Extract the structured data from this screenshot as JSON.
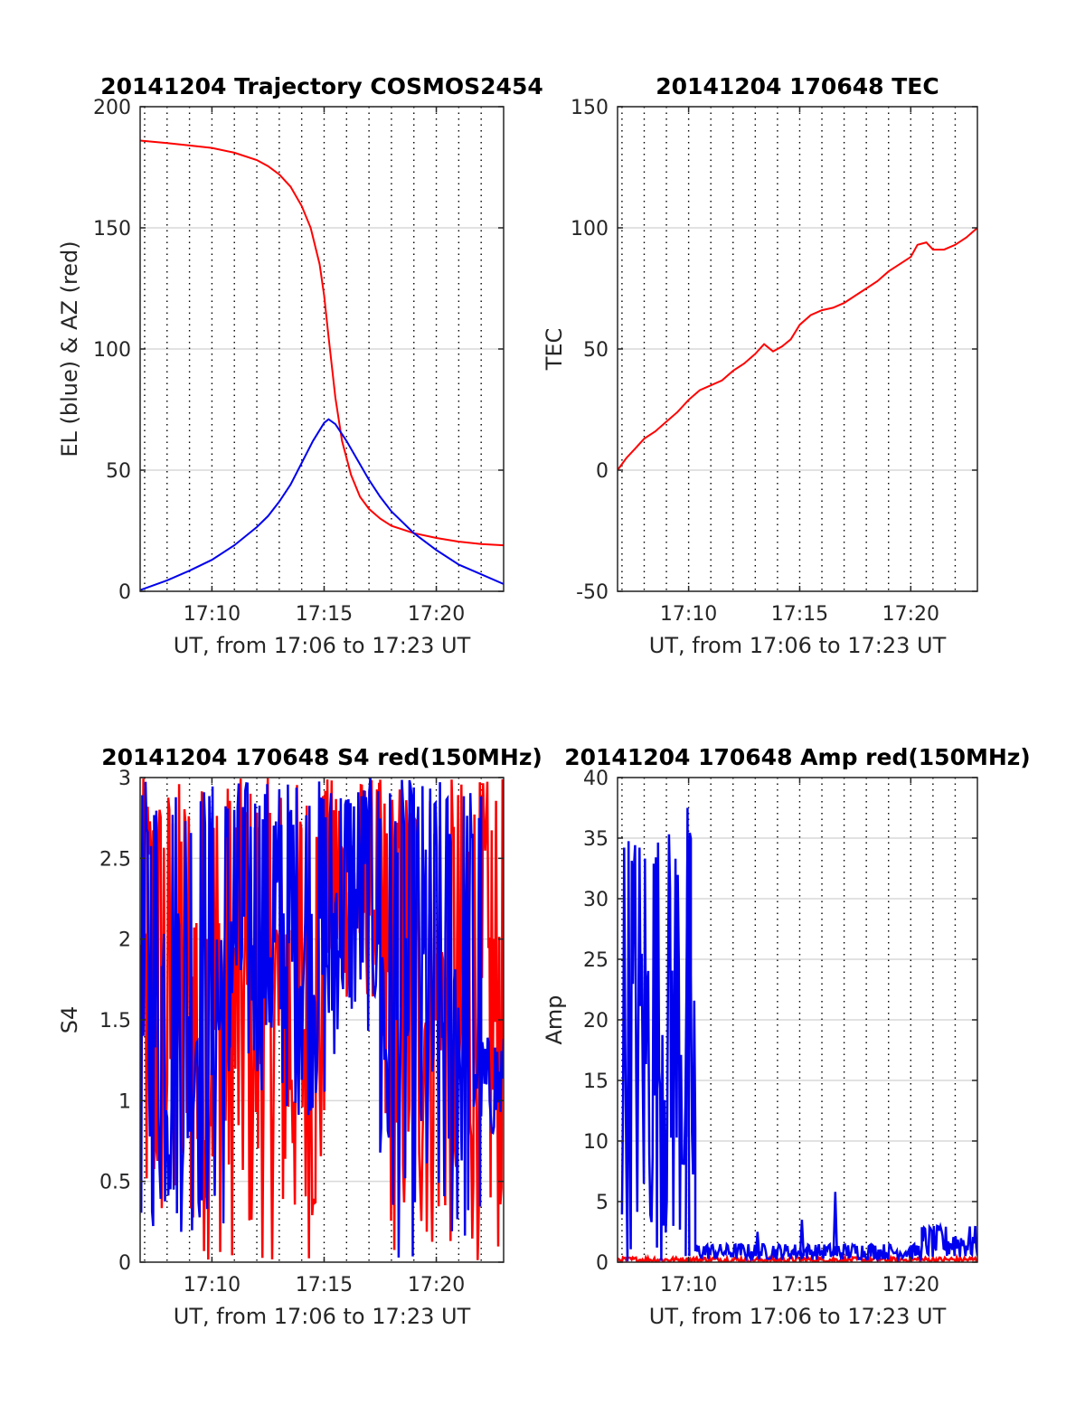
{
  "figure": {
    "x_ticks": [
      "17:10",
      "17:15",
      "17:20"
    ],
    "x_tick_values": [
      10,
      15,
      20
    ],
    "x_range": [
      6.8,
      23.0
    ],
    "minor_grid_minutes": [
      7,
      8,
      9,
      10,
      11,
      12,
      13,
      14,
      15,
      16,
      17,
      18,
      19,
      20,
      21,
      22
    ],
    "colors": {
      "red": "#ff0000",
      "blue": "#0000ee",
      "axis": "#262626",
      "grid": "#d9d9d9"
    }
  },
  "chart_data": [
    {
      "id": "trajectory",
      "type": "line",
      "title": "20141204 Trajectory COSMOS2454",
      "xlabel": "UT, from 17:06 to 17:23 UT",
      "ylabel": "EL (blue) & AZ (red)",
      "ylim": [
        0,
        200
      ],
      "yticks": [
        "0",
        "50",
        "100",
        "150",
        "200"
      ],
      "ytick_values": [
        0,
        50,
        100,
        150,
        200
      ],
      "series": [
        {
          "color": "#ff0000",
          "x": [
            6.8,
            8,
            9,
            10,
            11,
            12,
            12.5,
            13,
            13.5,
            14,
            14.4,
            14.8,
            15.0,
            15.2,
            15.5,
            15.8,
            16.2,
            16.6,
            17,
            17.5,
            18,
            19,
            20,
            21,
            22,
            23
          ],
          "y": [
            186,
            185,
            184,
            183,
            181,
            178,
            175.5,
            172,
            167,
            159,
            150,
            135,
            122,
            105,
            80,
            62,
            48,
            39,
            34,
            30,
            27,
            24,
            22,
            20.5,
            19.5,
            19
          ]
        },
        {
          "color": "#0000ee",
          "x": [
            6.8,
            8,
            9,
            10,
            11,
            12,
            12.5,
            13,
            13.5,
            14,
            14.5,
            15,
            15.2,
            15.5,
            16,
            16.5,
            17,
            17.5,
            18,
            19,
            20,
            21,
            22,
            23
          ],
          "y": [
            0.5,
            4.5,
            8.5,
            13,
            19,
            26.5,
            31,
            37,
            44,
            53,
            62,
            69.5,
            71,
            69,
            62,
            54,
            46,
            39,
            33,
            24,
            17,
            11,
            7,
            3
          ]
        }
      ]
    },
    {
      "id": "tec",
      "type": "line",
      "title": "20141204 170648 TEC",
      "xlabel": "UT, from 17:06 to 17:23 UT",
      "ylabel": "TEC",
      "ylim": [
        -50,
        150
      ],
      "yticks": [
        "-50",
        "0",
        "50",
        "100",
        "150"
      ],
      "ytick_values": [
        -50,
        0,
        50,
        100,
        150
      ],
      "series": [
        {
          "color": "#ff0000",
          "x": [
            6.8,
            7.2,
            7.6,
            8.0,
            8.5,
            9.0,
            9.5,
            10.0,
            10.5,
            11.0,
            11.5,
            12.0,
            12.5,
            13.0,
            13.4,
            13.8,
            14.2,
            14.6,
            15.0,
            15.5,
            16.0,
            16.5,
            17.0,
            17.5,
            18.0,
            18.5,
            19.0,
            19.5,
            20.0,
            20.3,
            20.7,
            21.0,
            21.5,
            22.0,
            22.5,
            23.0
          ],
          "y": [
            0,
            5,
            9,
            13,
            16,
            20,
            24,
            29,
            33,
            35,
            37,
            41,
            44,
            48,
            52,
            49,
            51,
            54,
            60,
            64,
            66,
            67,
            69,
            72,
            75,
            78,
            82,
            85,
            88,
            93,
            94,
            91,
            91,
            93,
            96,
            100
          ]
        }
      ]
    },
    {
      "id": "s4",
      "type": "line",
      "title": "20141204 170648 S4 red(150MHz)",
      "xlabel": "UT, from 17:06 to 17:23 UT",
      "ylabel": "S4",
      "ylim": [
        0,
        3
      ],
      "yticks": [
        "0",
        "0.5",
        "1",
        "1.5",
        "2",
        "2.5",
        "3"
      ],
      "ytick_values": [
        0,
        0.5,
        1,
        1.5,
        2,
        2.5,
        3
      ],
      "series": [
        {
          "color": "#ff0000",
          "segments": [
            {
              "x": [
                6.8,
                10.8
              ],
              "y_min": 0,
              "y_max": 3
            },
            {
              "x": [
                10.8,
                15.0
              ],
              "y_min": 0,
              "y_max": 3
            },
            {
              "x": [
                15.0,
                17.5
              ],
              "y_min": 1.6,
              "y_max": 3
            },
            {
              "x": [
                17.5,
                23.0
              ],
              "y_min": 0,
              "y_max": 3
            }
          ]
        },
        {
          "color": "#0000ee",
          "segments": [
            {
              "x": [
                6.8,
                10.8
              ],
              "y_min": 0.15,
              "y_max": 3
            },
            {
              "x": [
                10.8,
                13.0
              ],
              "y_min": 1.05,
              "y_max": 3
            },
            {
              "x": [
                13.0,
                15.5
              ],
              "y_min": 0.9,
              "y_max": 3
            },
            {
              "x": [
                15.5,
                17.5
              ],
              "y_min": 1.4,
              "y_max": 3
            },
            {
              "x": [
                17.5,
                22.0
              ],
              "y_min": 0,
              "y_max": 3
            },
            {
              "x": [
                22.0,
                23.0
              ],
              "y_min": 0.75,
              "y_max": 1.4
            }
          ]
        }
      ]
    },
    {
      "id": "amp",
      "type": "line",
      "title": "20141204 170648 Amp red(150MHz)",
      "xlabel": "UT, from 17:06 to 17:23 UT",
      "ylabel": "Amp",
      "ylim": [
        0,
        40
      ],
      "yticks": [
        "0",
        "5",
        "10",
        "15",
        "20",
        "25",
        "30",
        "35",
        "40"
      ],
      "ytick_values": [
        0,
        5,
        10,
        15,
        20,
        25,
        30,
        35,
        40
      ],
      "series": [
        {
          "color": "#ff0000",
          "segments": [
            {
              "x": [
                6.8,
                23.0
              ],
              "y_min": 0,
              "y_max": 0.4
            }
          ]
        },
        {
          "color": "#0000ee",
          "segments": [
            {
              "x": [
                7.0,
                10.1
              ],
              "y_min": 0,
              "y_max": 36
            },
            {
              "x": [
                10.1,
                10.3
              ],
              "y_min": 0,
              "y_max": 25
            },
            {
              "x": [
                10.3,
                20.5
              ],
              "y_min": 0.2,
              "y_max": 1.5
            },
            {
              "x": [
                20.5,
                23.0
              ],
              "y_min": 0.2,
              "y_max": 3
            }
          ],
          "peaks": [
            {
              "x": 9.95,
              "y": 37.5
            },
            {
              "x": 16.6,
              "y": 5.8
            },
            {
              "x": 15.1,
              "y": 3.5
            },
            {
              "x": 13.1,
              "y": 2.5
            }
          ]
        }
      ]
    }
  ]
}
